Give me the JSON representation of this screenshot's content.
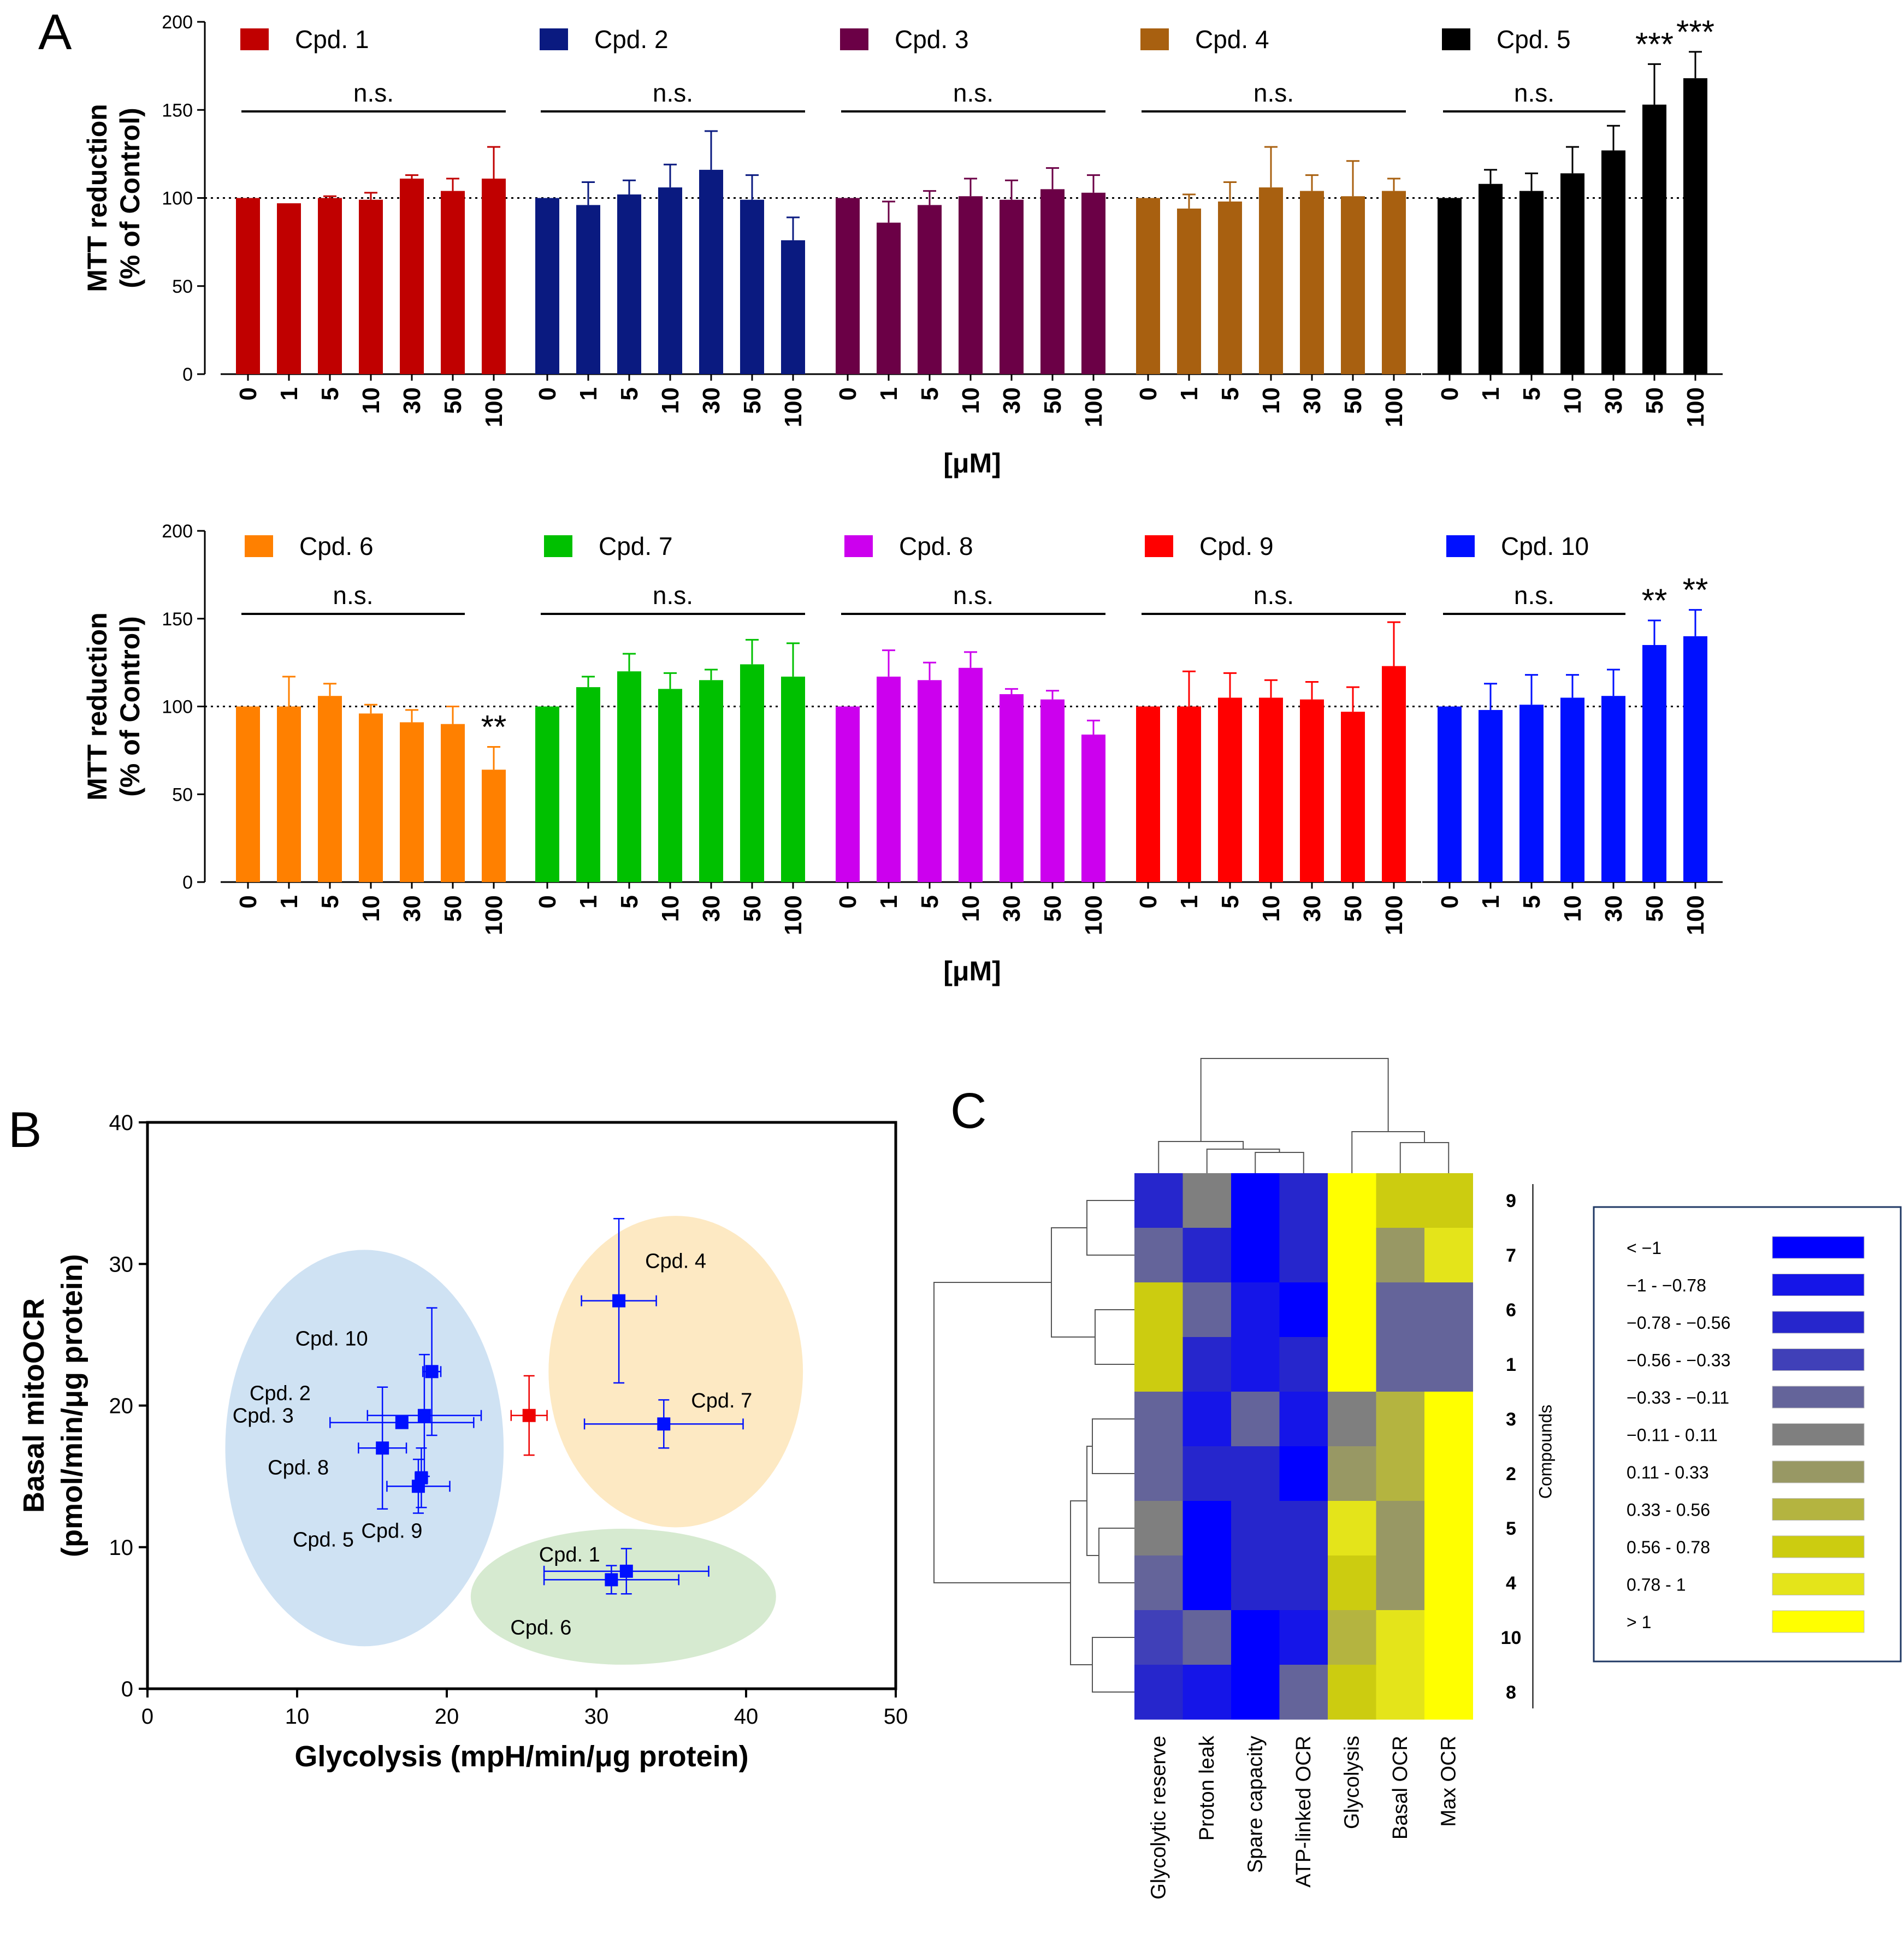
{
  "panel_labels": {
    "a": "A",
    "b": "B",
    "c": "C"
  },
  "chart_data": [
    {
      "type": "bar",
      "panel": "A (top row)",
      "ylabel_line1": "MTT reduction",
      "ylabel_line2": "(% of Control)",
      "xlabel": "[μM]",
      "ylim": [
        0,
        200
      ],
      "yticks": [
        "0",
        "50",
        "100",
        "150",
        "200"
      ],
      "reference_line": 100,
      "categories": [
        "0",
        "1",
        "5",
        "10",
        "30",
        "50",
        "100"
      ],
      "groups": [
        {
          "name": "Cpd. 1",
          "color": "#c00000",
          "values": [
            100,
            97,
            100,
            99,
            111,
            104,
            111
          ],
          "errors": [
            0,
            0,
            1,
            4,
            2,
            7,
            18
          ],
          "bracket_label": "n.s.",
          "stars": [
            "",
            "",
            "",
            "",
            "",
            "",
            ""
          ]
        },
        {
          "name": "Cpd. 2",
          "color": "#0a1a80",
          "values": [
            100,
            96,
            102,
            106,
            116,
            99,
            76
          ],
          "errors": [
            0,
            13,
            8,
            13,
            22,
            14,
            13
          ],
          "bracket_label": "n.s.",
          "stars": [
            "",
            "",
            "",
            "",
            "",
            "",
            ""
          ]
        },
        {
          "name": "Cpd. 3",
          "color": "#6b0046",
          "values": [
            100,
            86,
            96,
            101,
            99,
            105,
            103
          ],
          "errors": [
            0,
            12,
            8,
            10,
            11,
            12,
            10
          ],
          "bracket_label": "n.s.",
          "stars": [
            "",
            "",
            "",
            "",
            "",
            "",
            ""
          ]
        },
        {
          "name": "Cpd. 4",
          "color": "#a86010",
          "values": [
            100,
            94,
            98,
            106,
            104,
            101,
            104
          ],
          "errors": [
            0,
            8,
            11,
            23,
            9,
            20,
            7
          ],
          "bracket_label": "n.s.",
          "stars": [
            "",
            "",
            "",
            "",
            "",
            "",
            ""
          ]
        },
        {
          "name": "Cpd. 5",
          "color": "#000000",
          "values": [
            100,
            108,
            104,
            114,
            127,
            153,
            168
          ],
          "errors": [
            0,
            8,
            10,
            15,
            14,
            23,
            15
          ],
          "bracket_label": "n.s.",
          "stars": [
            "",
            "",
            "",
            "",
            "",
            "***",
            "***"
          ]
        }
      ]
    },
    {
      "type": "bar",
      "panel": "A (bottom row)",
      "ylabel_line1": "MTT reduction",
      "ylabel_line2": "(% of Control)",
      "xlabel": "[μM]",
      "ylim": [
        0,
        200
      ],
      "yticks": [
        "0",
        "50",
        "100",
        "150",
        "200"
      ],
      "reference_line": 100,
      "categories": [
        "0",
        "1",
        "5",
        "10",
        "30",
        "50",
        "100"
      ],
      "groups": [
        {
          "name": "Cpd. 6",
          "color": "#ff8000",
          "values": [
            100,
            100,
            106,
            96,
            91,
            90,
            64
          ],
          "errors": [
            0,
            17,
            7,
            5,
            7,
            10,
            13
          ],
          "bracket_label": "n.s.",
          "stars": [
            "",
            "",
            "",
            "",
            "",
            "",
            "**"
          ]
        },
        {
          "name": "Cpd. 7",
          "color": "#00c000",
          "values": [
            100,
            111,
            120,
            110,
            115,
            124,
            117
          ],
          "errors": [
            0,
            6,
            10,
            9,
            6,
            14,
            19
          ],
          "bracket_label": "n.s.",
          "stars": [
            "",
            "",
            "",
            "",
            "",
            "",
            ""
          ]
        },
        {
          "name": "Cpd. 8",
          "color": "#cc00ee",
          "values": [
            100,
            117,
            115,
            122,
            107,
            104,
            84
          ],
          "errors": [
            0,
            15,
            10,
            9,
            3,
            5,
            8
          ],
          "bracket_label": "n.s.",
          "stars": [
            "",
            "",
            "",
            "",
            "",
            "",
            ""
          ]
        },
        {
          "name": "Cpd. 9",
          "color": "#ff0000",
          "values": [
            100,
            100,
            105,
            105,
            104,
            97,
            123
          ],
          "errors": [
            0,
            20,
            14,
            10,
            10,
            14,
            25
          ],
          "bracket_label": "n.s.",
          "stars": [
            "",
            "",
            "",
            "",
            "",
            "",
            ""
          ]
        },
        {
          "name": "Cpd. 10",
          "color": "#0010ff",
          "values": [
            100,
            98,
            101,
            105,
            106,
            135,
            140
          ],
          "errors": [
            0,
            15,
            17,
            13,
            15,
            14,
            15
          ],
          "bracket_label": "n.s.",
          "stars": [
            "",
            "",
            "",
            "",
            "",
            "**",
            "**"
          ]
        }
      ]
    },
    {
      "type": "scatter",
      "panel": "B",
      "xlabel": "Glycolysis (mpH/min/μg protein)",
      "ylabel_line1": "Basal mitoOCR",
      "ylabel_line2": "(pmol/min/μg protein)",
      "xlim": [
        0,
        50
      ],
      "ylim": [
        0,
        40
      ],
      "xticks": [
        "0",
        "10",
        "20",
        "30",
        "40",
        "50"
      ],
      "yticks": [
        "0",
        "10",
        "20",
        "30",
        "40"
      ],
      "clusters": [
        {
          "color": "#cfe2f3",
          "center": [
            14.5,
            17
          ],
          "radius": [
            9.3,
            14
          ]
        },
        {
          "color": "#fde9c3",
          "center": [
            35.3,
            22.4
          ],
          "radius": [
            8.5,
            11
          ]
        },
        {
          "color": "#d6ead0",
          "center": [
            31.8,
            6.5
          ],
          "radius": [
            10.2,
            4.8
          ]
        }
      ],
      "points": [
        {
          "label": "Cpd. 10",
          "x": 19.0,
          "y": 22.4,
          "xerr": 0.6,
          "yerr": 4.5,
          "color": "#0010ff"
        },
        {
          "label": "Cpd. 2",
          "x": 18.5,
          "y": 19.3,
          "xerr": 3.8,
          "yerr": 4.3,
          "color": "#0010ff"
        },
        {
          "label": "Cpd. 3",
          "x": 17.0,
          "y": 18.8,
          "xerr": 4.8,
          "yerr": 0,
          "color": "#0010ff"
        },
        {
          "label": "Cpd. 8",
          "x": 15.7,
          "y": 17.0,
          "xerr": 1.6,
          "yerr": 4.3,
          "color": "#0010ff"
        },
        {
          "label": "Cpd. 5",
          "x": 18.1,
          "y": 14.3,
          "xerr": 2.1,
          "yerr": 1.9,
          "color": "#0010ff"
        },
        {
          "label": "Cpd. 9",
          "x": 18.3,
          "y": 14.9,
          "xerr": 0.4,
          "yerr": 2.1,
          "color": "#0010ff"
        },
        {
          "label": "Cpd. 4",
          "x": 31.5,
          "y": 27.4,
          "xerr": 2.5,
          "yerr": 5.8,
          "color": "#0010ff"
        },
        {
          "label": "Cpd. 7",
          "x": 34.5,
          "y": 18.7,
          "xerr": 5.3,
          "yerr": 1.7,
          "color": "#0010ff"
        },
        {
          "label": "Cpd. 1",
          "x": 32.0,
          "y": 8.3,
          "xerr": 5.5,
          "yerr": 1.6,
          "color": "#0010ff"
        },
        {
          "label": "Cpd. 6",
          "x": 31.0,
          "y": 7.7,
          "xerr": 4.5,
          "yerr": 1.0,
          "color": "#0010ff"
        },
        {
          "label": "",
          "x": 25.5,
          "y": 19.3,
          "xerr": 1.2,
          "yerr": 2.8,
          "color": "#ee0000"
        }
      ]
    },
    {
      "type": "heatmap",
      "panel": "C",
      "columns": [
        "Glycolytic reserve",
        "Proton leak",
        "Spare capacity",
        "ATP-linked OCR",
        "Glycolysis",
        "Basal OCR",
        "Max OCR"
      ],
      "rows": [
        "9",
        "7",
        "6",
        "1",
        "3",
        "2",
        "5",
        "4",
        "10",
        "8"
      ],
      "row_axis_label": "Compounds",
      "cell_bins": [
        [
          2,
          5,
          0,
          2,
          10,
          8,
          8
        ],
        [
          4,
          2,
          0,
          2,
          10,
          6,
          9
        ],
        [
          8,
          4,
          1,
          0,
          10,
          4,
          4
        ],
        [
          8,
          2,
          1,
          2,
          10,
          4,
          4
        ],
        [
          4,
          1,
          4,
          1,
          5,
          7,
          10
        ],
        [
          4,
          2,
          2,
          0,
          6,
          7,
          10
        ],
        [
          5,
          0,
          2,
          2,
          9,
          6,
          10
        ],
        [
          4,
          0,
          2,
          2,
          8,
          6,
          10
        ],
        [
          3,
          4,
          0,
          1,
          7,
          9,
          10
        ],
        [
          2,
          1,
          0,
          4,
          8,
          9,
          10
        ]
      ],
      "legend": [
        {
          "label": "< −1",
          "color": "#0000ff"
        },
        {
          "label": "−1 - −0.78",
          "color": "#1515e8"
        },
        {
          "label": "−0.78 - −0.56",
          "color": "#2626cc"
        },
        {
          "label": "−0.56 - −0.33",
          "color": "#4040b8"
        },
        {
          "label": "−0.33 - −0.11",
          "color": "#64649a"
        },
        {
          "label": "−0.11 - 0.11",
          "color": "#7f7f7f"
        },
        {
          "label": "0.11 - 0.33",
          "color": "#989864"
        },
        {
          "label": "0.33 - 0.56",
          "color": "#b4b440"
        },
        {
          "label": "0.56 - 0.78",
          "color": "#cccc10"
        },
        {
          "label": "0.78 - 1",
          "color": "#e4e41a"
        },
        {
          "label": "> 1",
          "color": "#ffff00"
        }
      ]
    }
  ]
}
